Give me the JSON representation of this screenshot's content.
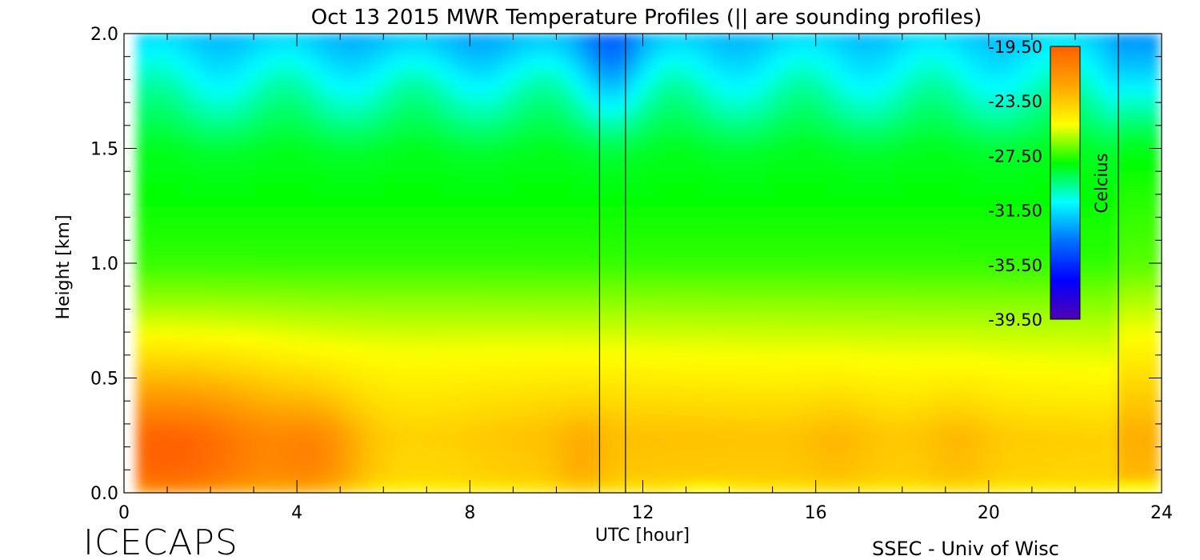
{
  "chart_data": {
    "type": "heatmap",
    "title": "Oct 13 2015 MWR Temperature Profiles (|| are sounding profiles)",
    "xlabel": "UTC [hour]",
    "ylabel": "Height [km]",
    "xlim": [
      0,
      24
    ],
    "ylim": [
      0,
      2
    ],
    "x_ticks": [
      "0",
      "4",
      "8",
      "12",
      "16",
      "20",
      "24"
    ],
    "y_ticks": [
      "0.0",
      "0.5",
      "1.0",
      "1.5",
      "2.0"
    ],
    "data_x_range": [
      0.3,
      23.0
    ],
    "sounding_times_utc": [
      11.0,
      11.6,
      23.0
    ],
    "colorbar": {
      "label": "Celcius",
      "min": -39.5,
      "max": -19.5,
      "ticks": [
        "-19.50",
        "-23.50",
        "-27.50",
        "-31.50",
        "-35.50",
        "-39.50"
      ],
      "colors": [
        "#ff6000",
        "#ffa500",
        "#ffff00",
        "#00ff00",
        "#00ffff",
        "#0070ff",
        "#0000ff",
        "#5000b0"
      ],
      "placement": "inside-top-right"
    },
    "temperature_profile_typical": [
      {
        "height_km": 0.0,
        "temp_c": -23.5
      },
      {
        "height_km": 0.25,
        "temp_c": -23.0
      },
      {
        "height_km": 0.5,
        "temp_c": -24.5
      },
      {
        "height_km": 1.0,
        "temp_c": -27.5
      },
      {
        "height_km": 1.5,
        "temp_c": -28.5
      },
      {
        "height_km": 2.0,
        "temp_c": -32.0
      }
    ],
    "warm_core": {
      "utc": 1.0,
      "height_km": 0.15,
      "temp_c": -20.0
    }
  },
  "footer": {
    "logo": "ICECAPS",
    "credit": "SSEC - Univ of Wisc"
  }
}
